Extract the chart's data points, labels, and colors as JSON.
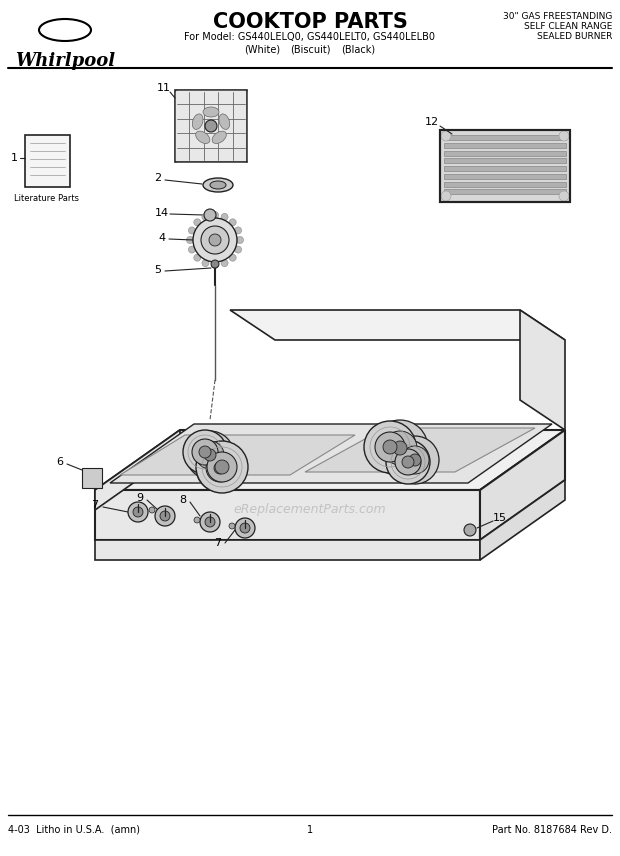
{
  "title": "COOKTOP PARTS",
  "subtitle_line1": "For Model: GS440LELQ0, GS440LELT0, GS440LELB0",
  "subtitle_line2_a": "(White)",
  "subtitle_line2_b": "(Biscuit)",
  "subtitle_line2_c": "(Black)",
  "top_right_line1": "30\" GAS FREESTANDING",
  "top_right_line2": "SELF CLEAN RANGE",
  "top_right_line3": "SEALED BURNER",
  "bottom_left": "4-03  Litho in U.S.A.  (amn)",
  "bottom_center": "1",
  "bottom_right": "Part No. 8187684 Rev D.",
  "whirlpool_text": "Whirlpool",
  "literature_parts_text": "Literature Parts",
  "watermark": "eReplacementParts.com",
  "bg_color": "#ffffff",
  "line_color": "#222222",
  "fig_width": 6.2,
  "fig_height": 8.56,
  "dpi": 100
}
